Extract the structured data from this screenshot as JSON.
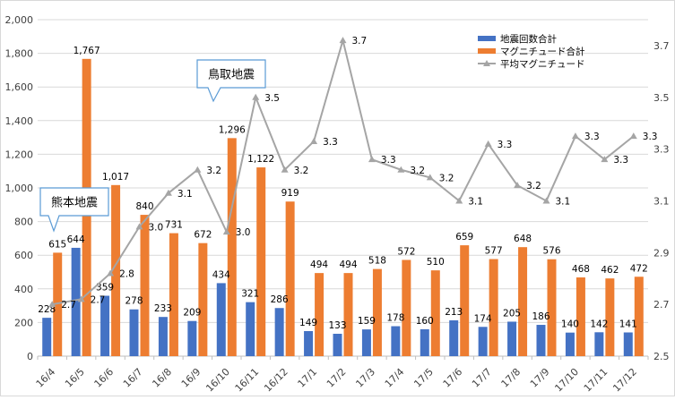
{
  "chart_data": {
    "type": "bar",
    "categories": [
      "16/4",
      "16/5",
      "16/6",
      "16/7",
      "16/8",
      "16/9",
      "16/10",
      "16/11",
      "16/12",
      "17/1",
      "17/2",
      "17/3",
      "17/4",
      "17/5",
      "17/6",
      "17/7",
      "17/8",
      "17/9",
      "17/10",
      "17/11",
      "17/12"
    ],
    "series": [
      {
        "name": "地震回数合計",
        "type": "bar",
        "axis": "left",
        "color": "#4472C4",
        "values": [
          228,
          644,
          359,
          278,
          233,
          209,
          434,
          321,
          286,
          149,
          133,
          159,
          178,
          160,
          213,
          174,
          205,
          186,
          140,
          142,
          141
        ],
        "labels": [
          "228",
          "644",
          "359",
          "278",
          "233",
          "209",
          "434",
          "321",
          "286",
          "149",
          "133",
          "159",
          "178",
          "160",
          "213",
          "174",
          "205",
          "186",
          "140",
          "142",
          "141"
        ]
      },
      {
        "name": "マグニチュード合計",
        "type": "bar",
        "axis": "left",
        "color": "#ED7D31",
        "values": [
          615,
          1767,
          1017,
          840,
          731,
          672,
          1296,
          1122,
          919,
          494,
          494,
          518,
          572,
          510,
          659,
          577,
          648,
          576,
          468,
          462,
          472
        ],
        "labels": [
          "615",
          "1,767",
          "1,017",
          "840",
          "731",
          "672",
          "1,296",
          "1,122",
          "919",
          "494",
          "494",
          "518",
          "572",
          "510",
          "659",
          "577",
          "648",
          "576",
          "468",
          "462",
          "472"
        ]
      },
      {
        "name": "平均マグニチュード",
        "type": "line",
        "axis": "right",
        "color": "#A5A5A5",
        "values": [
          2.7,
          2.72,
          2.82,
          3.0,
          3.13,
          3.22,
          2.98,
          3.5,
          3.22,
          3.33,
          3.72,
          3.26,
          3.22,
          3.19,
          3.1,
          3.32,
          3.16,
          3.1,
          3.35,
          3.26,
          3.35
        ],
        "labels": [
          "2.7",
          "2.7",
          "2.8",
          "3.0",
          "3.1",
          "3.2",
          "3.0",
          "3.5",
          "3.2",
          "3.3",
          "3.7",
          "3.3",
          "3.2",
          "3.2",
          "3.1",
          "3.3",
          "3.2",
          "3.1",
          "3.3",
          "3.3",
          "3.3"
        ]
      }
    ],
    "y_left": {
      "ylim": [
        0,
        2000
      ],
      "ticks": [
        "0",
        "200",
        "400",
        "600",
        "800",
        "1,000",
        "1,200",
        "1,400",
        "1,600",
        "1,800",
        "2,000"
      ]
    },
    "y_right": {
      "ylim": [
        2.5,
        3.8
      ],
      "ticks": [
        "2.5",
        "2.7",
        "2.9",
        "3.1",
        "3.3",
        "3.5",
        "3.7"
      ]
    },
    "grid": true,
    "legend": {
      "position": "top-right"
    },
    "annotations": [
      {
        "text": "熊本地震",
        "points_to": "16/4"
      },
      {
        "text": "鳥取地震",
        "points_to": "16/10"
      }
    ]
  }
}
